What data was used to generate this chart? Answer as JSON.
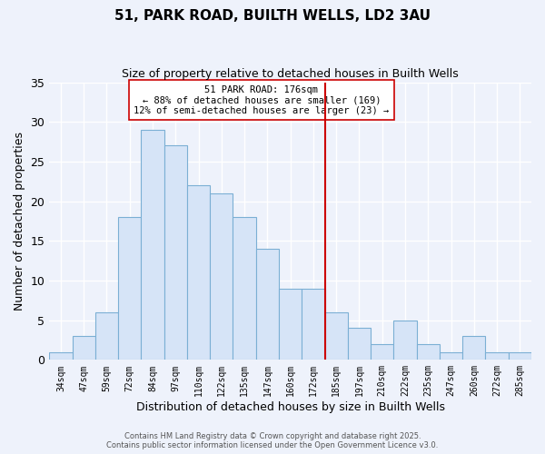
{
  "title": "51, PARK ROAD, BUILTH WELLS, LD2 3AU",
  "subtitle": "Size of property relative to detached houses in Builth Wells",
  "xlabel": "Distribution of detached houses by size in Builth Wells",
  "ylabel": "Number of detached properties",
  "bin_labels": [
    "34sqm",
    "47sqm",
    "59sqm",
    "72sqm",
    "84sqm",
    "97sqm",
    "110sqm",
    "122sqm",
    "135sqm",
    "147sqm",
    "160sqm",
    "172sqm",
    "185sqm",
    "197sqm",
    "210sqm",
    "222sqm",
    "235sqm",
    "247sqm",
    "260sqm",
    "272sqm",
    "285sqm"
  ],
  "bar_values": [
    1,
    3,
    6,
    18,
    29,
    27,
    22,
    21,
    18,
    14,
    9,
    9,
    6,
    4,
    2,
    5,
    2,
    1,
    3,
    1,
    1
  ],
  "bar_color": "#d6e4f7",
  "bar_edge_color": "#7bafd4",
  "vline_color": "#cc0000",
  "annotation_title": "51 PARK ROAD: 176sqm",
  "annotation_line1": "← 88% of detached houses are smaller (169)",
  "annotation_line2": "12% of semi-detached houses are larger (23) →",
  "annotation_box_color": "white",
  "annotation_box_edge": "#cc0000",
  "ylim": [
    0,
    35
  ],
  "yticks": [
    0,
    5,
    10,
    15,
    20,
    25,
    30,
    35
  ],
  "footer1": "Contains HM Land Registry data © Crown copyright and database right 2025.",
  "footer2": "Contains public sector information licensed under the Open Government Licence v3.0.",
  "bg_color": "#eef2fb",
  "grid_color": "white"
}
